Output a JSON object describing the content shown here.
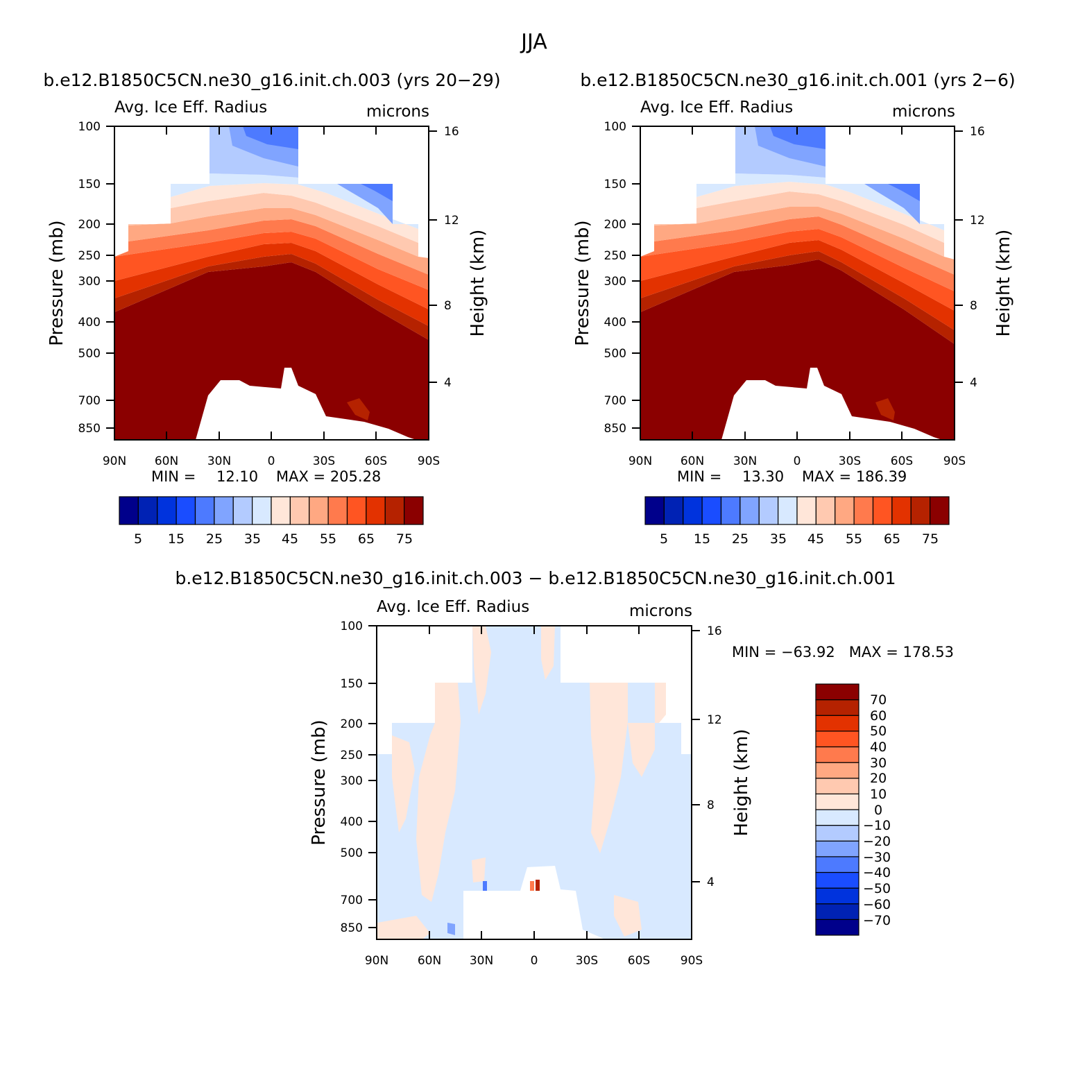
{
  "page": {
    "title": "JJA"
  },
  "palettes": {
    "field": [
      "#00008b",
      "#0022b4",
      "#0033dd",
      "#1a4dff",
      "#4d7aff",
      "#80a4ff",
      "#b3cbff",
      "#d8e9ff",
      "#ffe6d9",
      "#ffc9b0",
      "#ffa882",
      "#ff7a4d",
      "#ff5522",
      "#e33200",
      "#b52200",
      "#8b0000"
    ],
    "diff": [
      "#00008b",
      "#0022b4",
      "#0033dd",
      "#1a4dff",
      "#4d7aff",
      "#80a4ff",
      "#b3cbff",
      "#d8e9ff",
      "#ffe6d9",
      "#ffc9b0",
      "#ffa882",
      "#ff7a4d",
      "#ff5522",
      "#e33200",
      "#b52200",
      "#8b0000"
    ]
  },
  "chart_data": [
    {
      "type": "heatmap",
      "title": "b.e12.B1850C5CN.ne30_g16.init.ch.003 (yrs 20−29)",
      "left_label": "Avg. Ice Eff. Radius",
      "right_label": "microns",
      "ylabel": "Pressure (mb)",
      "y2label": "Height (km)",
      "x_ticklabels": [
        "90N",
        "60N",
        "30N",
        "0",
        "30S",
        "60S",
        "90S"
      ],
      "y_ticklabels": [
        "100",
        "150",
        "200",
        "250",
        "300",
        "400",
        "500",
        "700",
        "850"
      ],
      "y2_ticklabels": [
        "16",
        "12",
        "8",
        "4"
      ],
      "min_label": "MIN =",
      "min_value": "12.10",
      "max_label": "MAX = 205.28",
      "colorbar_labels": [
        "5",
        "15",
        "25",
        "35",
        "45",
        "55",
        "65",
        "75"
      ],
      "levels": [
        5,
        10,
        15,
        20,
        25,
        30,
        35,
        40,
        45,
        50,
        55,
        60,
        65,
        70,
        75
      ]
    },
    {
      "type": "heatmap",
      "title": "b.e12.B1850C5CN.ne30_g16.init.ch.001 (yrs 2−6)",
      "left_label": "Avg. Ice Eff. Radius",
      "right_label": "microns",
      "ylabel": "Pressure (mb)",
      "y2label": "Height (km)",
      "x_ticklabels": [
        "90N",
        "60N",
        "30N",
        "0",
        "30S",
        "60S",
        "90S"
      ],
      "y_ticklabels": [
        "100",
        "150",
        "200",
        "250",
        "300",
        "400",
        "500",
        "700",
        "850"
      ],
      "y2_ticklabels": [
        "16",
        "12",
        "8",
        "4"
      ],
      "min_label": "MIN =",
      "min_value": "13.30",
      "max_label": "MAX = 186.39",
      "colorbar_labels": [
        "5",
        "15",
        "25",
        "35",
        "45",
        "55",
        "65",
        "75"
      ],
      "levels": [
        5,
        10,
        15,
        20,
        25,
        30,
        35,
        40,
        45,
        50,
        55,
        60,
        65,
        70,
        75
      ]
    },
    {
      "type": "heatmap",
      "title": "b.e12.B1850C5CN.ne30_g16.init.ch.003 − b.e12.B1850C5CN.ne30_g16.init.ch.001",
      "left_label": "Avg. Ice Eff. Radius",
      "right_label": "microns",
      "ylabel": "Pressure (mb)",
      "y2label": "Height (km)",
      "x_ticklabels": [
        "90N",
        "60N",
        "30N",
        "0",
        "30S",
        "60S",
        "90S"
      ],
      "y_ticklabels": [
        "100",
        "150",
        "200",
        "250",
        "300",
        "400",
        "500",
        "700",
        "850"
      ],
      "y2_ticklabels": [
        "16",
        "12",
        "8",
        "4"
      ],
      "minmax_label": "MIN = −63.92   MAX = 178.53",
      "colorbar_labels": [
        "70",
        "60",
        "50",
        "40",
        "30",
        "20",
        "10",
        "0",
        "−10",
        "−20",
        "−30",
        "−40",
        "−50",
        "−60",
        "−70"
      ],
      "levels": [
        -70,
        -60,
        -50,
        -40,
        -30,
        -20,
        -10,
        0,
        10,
        20,
        30,
        40,
        50,
        60,
        70
      ]
    }
  ]
}
